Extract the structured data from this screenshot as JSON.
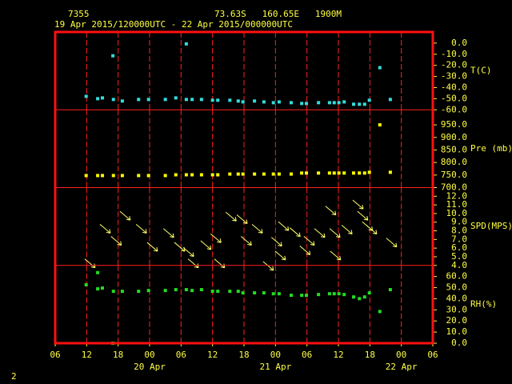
{
  "header": {
    "station": "7355",
    "location": "73.63S   160.65E   1900M",
    "period": "19 Apr 2015/120000UTC - 22 Apr 2015/000000UTC"
  },
  "footer": "2",
  "chart_data": [
    {
      "type": "scatter",
      "label": "T(C)",
      "color": "#33dddd",
      "x": [
        5.9,
        8.1,
        9.0,
        11.0,
        11.1,
        12.8,
        15.9,
        17.8,
        21.0,
        23.0,
        25.0,
        25.0,
        26.1,
        27.9,
        30.0,
        31.0,
        33.3,
        34.9,
        35.8,
        38.0,
        39.8,
        41.6,
        42.7,
        45.0,
        47.0,
        47.9,
        50.2,
        52.3,
        53.2,
        54.1,
        55.1,
        56.9,
        58.0,
        59.0,
        59.9,
        61.9,
        63.9
      ],
      "values": [
        -47.9,
        -50,
        -49.3,
        -11.4,
        -50.7,
        -52.1,
        -50.7,
        -50.7,
        -50.7,
        -49.3,
        -0.7,
        -50.7,
        -50.7,
        -50.7,
        -51.4,
        -51.4,
        -51.4,
        -52.1,
        -52.9,
        -52.1,
        -52.9,
        -53.6,
        -52.9,
        -53.6,
        -54.3,
        -54.3,
        -53.6,
        -53.6,
        -53.6,
        -53.6,
        -52.9,
        -55,
        -55,
        -55,
        -51.4,
        -22.1,
        -50.7
      ],
      "xlim": [
        0,
        72
      ],
      "xticks": [
        0,
        6,
        12,
        18,
        24,
        30,
        36,
        42,
        48,
        54,
        60,
        66,
        72
      ],
      "ylim": [
        -60,
        10
      ],
      "yticks": [
        {
          "value": 0,
          "label": "0.0"
        },
        {
          "value": -10,
          "label": "-10.0"
        },
        {
          "value": -20,
          "label": "-20.0"
        },
        {
          "value": -30,
          "label": "-30.0"
        },
        {
          "value": -40,
          "label": "-40.0"
        },
        {
          "value": -50,
          "label": "-50.0"
        },
        {
          "value": -60,
          "label": "-60.0"
        }
      ]
    },
    {
      "type": "scatter",
      "label": "Pre (mb)",
      "color": "#ffff00",
      "x": [
        5.9,
        8.1,
        9.0,
        11.1,
        12.8,
        15.9,
        17.8,
        21.0,
        23.0,
        25.0,
        26.1,
        27.9,
        30.0,
        31.0,
        33.3,
        34.9,
        35.8,
        38.0,
        39.8,
        41.6,
        42.7,
        45.0,
        47.0,
        47.9,
        50.2,
        52.3,
        53.2,
        54.1,
        55.1,
        56.9,
        58.0,
        59.0,
        59.9,
        61.9,
        63.9
      ],
      "values": [
        748,
        748,
        748,
        748,
        748,
        748,
        748,
        748,
        751,
        751,
        751,
        751,
        751,
        751,
        754,
        754,
        754,
        754,
        754,
        754,
        754,
        754,
        758,
        758,
        758,
        758,
        758,
        758,
        758,
        758,
        758,
        758,
        761,
        950,
        761
      ],
      "xlim": [
        0,
        72
      ],
      "xticks": [
        0,
        6,
        12,
        18,
        24,
        30,
        36,
        42,
        48,
        54,
        60,
        66,
        72
      ],
      "ylim": [
        700,
        1010
      ],
      "yticks": [
        {
          "value": 700,
          "label": "700.0"
        },
        {
          "value": 750,
          "label": "750.0"
        },
        {
          "value": 800,
          "label": "800.0"
        },
        {
          "value": 850,
          "label": "850.0"
        },
        {
          "value": 900,
          "label": "900.0"
        },
        {
          "value": 950,
          "label": "950.0"
        }
      ]
    },
    {
      "type": "wind",
      "label": "SPD(MPS)",
      "color": "#ffff66",
      "x": [
        6.7,
        9.6,
        11.7,
        13.4,
        16.5,
        18.6,
        21.7,
        23.8,
        25.5,
        26.4,
        28.8,
        30.7,
        31.4,
        33.6,
        35.7,
        36.5,
        38.6,
        40.7,
        42.3,
        43.0,
        43.6,
        45.8,
        47.7,
        48.5,
        50.5,
        52.6,
        53.4,
        53.5,
        55.7,
        57.8,
        58.7,
        59.6,
        60.4,
        64.2
      ],
      "values": [
        4.2,
        8.2,
        6.8,
        9.7,
        8.2,
        6.1,
        7.7,
        6.1,
        5.5,
        4.2,
        6.3,
        7.1,
        4.2,
        9.6,
        9.3,
        6.8,
        8.2,
        3.9,
        6.7,
        5.1,
        8.5,
        7.8,
        5.7,
        6.8,
        7.7,
        10.3,
        7.7,
        5.1,
        8.1,
        11.0,
        9.7,
        8.5,
        8.1,
        6.6
      ],
      "xlim": [
        0,
        72
      ],
      "xticks": [
        0,
        6,
        12,
        18,
        24,
        30,
        36,
        42,
        48,
        54,
        60,
        66,
        72
      ],
      "ylim": [
        4,
        13
      ],
      "yticks": [
        {
          "value": 4,
          "label": "4.0"
        },
        {
          "value": 5,
          "label": "5.0"
        },
        {
          "value": 6,
          "label": "6.0"
        },
        {
          "value": 7,
          "label": "7.0"
        },
        {
          "value": 8,
          "label": "8.0"
        },
        {
          "value": 9,
          "label": "9.0"
        },
        {
          "value": 10,
          "label": "10.0"
        },
        {
          "value": 11,
          "label": "11.0"
        },
        {
          "value": 12,
          "label": "12.0"
        }
      ]
    },
    {
      "type": "scatter",
      "label": "RH(%)",
      "color": "#22dd22",
      "x": [
        5.9,
        8.1,
        8.1,
        9.0,
        11.0,
        11.1,
        12.8,
        15.9,
        17.8,
        21.0,
        23.0,
        25.0,
        26.1,
        27.9,
        30.0,
        31.0,
        33.3,
        34.9,
        35.8,
        38.0,
        39.8,
        41.6,
        42.7,
        45.0,
        47.0,
        47.9,
        50.2,
        52.3,
        53.2,
        54.1,
        55.1,
        56.9,
        58.0,
        59.0,
        59.9,
        61.9,
        63.9
      ],
      "values": [
        52.6,
        63.5,
        48.9,
        49.6,
        0,
        46.7,
        46.7,
        46.7,
        47.4,
        47.4,
        48.2,
        48.2,
        47.4,
        48.2,
        46.7,
        46.7,
        46.7,
        46.7,
        45.3,
        45.3,
        45.3,
        44.5,
        44.5,
        43.1,
        43.1,
        43.1,
        43.8,
        44.5,
        44.5,
        44.5,
        43.8,
        41.6,
        40.1,
        41.6,
        45.3,
        28.5,
        48.2
      ],
      "xlim": [
        0,
        72
      ],
      "xticks": [
        {
          "value": 0,
          "label": "06"
        },
        {
          "value": 6,
          "label": "12"
        },
        {
          "value": 12,
          "label": "18"
        },
        {
          "value": 18,
          "label": "00"
        },
        {
          "value": 24,
          "label": "06"
        },
        {
          "value": 30,
          "label": "12"
        },
        {
          "value": 36,
          "label": "18"
        },
        {
          "value": 42,
          "label": "00"
        },
        {
          "value": 48,
          "label": "06"
        },
        {
          "value": 54,
          "label": "12"
        },
        {
          "value": 60,
          "label": "18"
        },
        {
          "value": 66,
          "label": "00"
        },
        {
          "value": 72,
          "label": "06"
        }
      ],
      "day_labels": [
        {
          "value": 18,
          "label": "20 Apr"
        },
        {
          "value": 42,
          "label": "21 Apr"
        },
        {
          "value": 66,
          "label": "22 Apr"
        }
      ],
      "ylim": [
        0,
        70
      ],
      "yticks": [
        {
          "value": 0,
          "label": "0.0"
        },
        {
          "value": 10,
          "label": "10.0"
        },
        {
          "value": 20,
          "label": "20.0"
        },
        {
          "value": 30,
          "label": "30.0"
        },
        {
          "value": 40,
          "label": "40.0"
        },
        {
          "value": 50,
          "label": "50.0"
        },
        {
          "value": 60,
          "label": "60.0"
        }
      ]
    }
  ]
}
